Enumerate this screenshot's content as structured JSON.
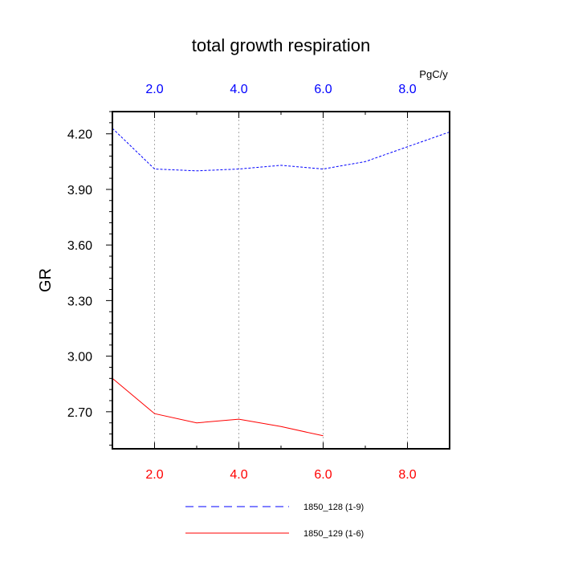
{
  "chart_data": {
    "type": "line",
    "title": "total growth respiration",
    "ylabel": "GR",
    "units": "PgC/y",
    "xlim": [
      1,
      9
    ],
    "ylim": [
      2.5,
      4.32
    ],
    "grid": "vertical dotted",
    "top_axis": {
      "ticks": [
        2,
        4,
        6,
        8
      ],
      "tick_labels": [
        "2.0",
        "4.0",
        "6.0",
        "8.0"
      ],
      "color": "#0000ff"
    },
    "bottom_axis": {
      "ticks": [
        2,
        4,
        6,
        8
      ],
      "tick_labels": [
        "2.0",
        "4.0",
        "6.0",
        "8.0"
      ],
      "color": "#ff0000"
    },
    "y_ticks": [
      2.7,
      3.0,
      3.3,
      3.6,
      3.9,
      4.2
    ],
    "y_tick_labels": [
      "2.70",
      "3.00",
      "3.30",
      "3.60",
      "3.90",
      "4.20"
    ],
    "series": [
      {
        "name": "1850_128 (1-9)",
        "color": "#0000ff",
        "dash": "dashed",
        "x": [
          1,
          2,
          3,
          4,
          5,
          6,
          7,
          8,
          9
        ],
        "values": [
          4.23,
          4.01,
          4.0,
          4.01,
          4.03,
          4.01,
          4.05,
          4.13,
          4.21
        ]
      },
      {
        "name": "1850_129 (1-6)",
        "color": "#ff0000",
        "dash": "solid",
        "x": [
          1,
          2,
          3,
          4,
          5,
          6
        ],
        "values": [
          2.88,
          2.69,
          2.64,
          2.66,
          2.62,
          2.57
        ]
      }
    ],
    "legend_position": "bottom-center"
  }
}
